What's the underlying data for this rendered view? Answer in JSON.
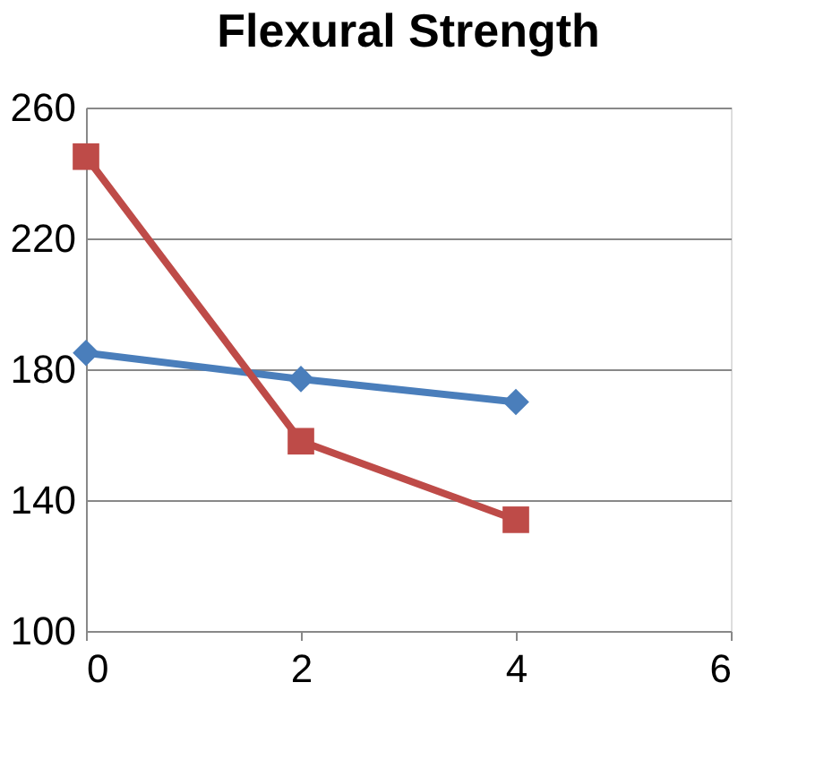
{
  "chart_data": {
    "type": "line",
    "title": "Flexural Strength",
    "x": [
      0,
      2,
      4
    ],
    "series": [
      {
        "color": "#4a7ebb",
        "values": [
          185,
          177,
          170
        ],
        "marker": "diamond"
      },
      {
        "color": "#be4b48",
        "values": [
          245,
          158,
          134
        ],
        "marker": "square"
      }
    ],
    "xlim": [
      0,
      6
    ],
    "xticks": [
      0,
      2,
      4,
      6
    ],
    "ylim": [
      100,
      260
    ],
    "yticks": [
      100,
      140,
      180,
      220,
      260
    ],
    "grid": "y",
    "legend": false,
    "line_style": "solid"
  }
}
